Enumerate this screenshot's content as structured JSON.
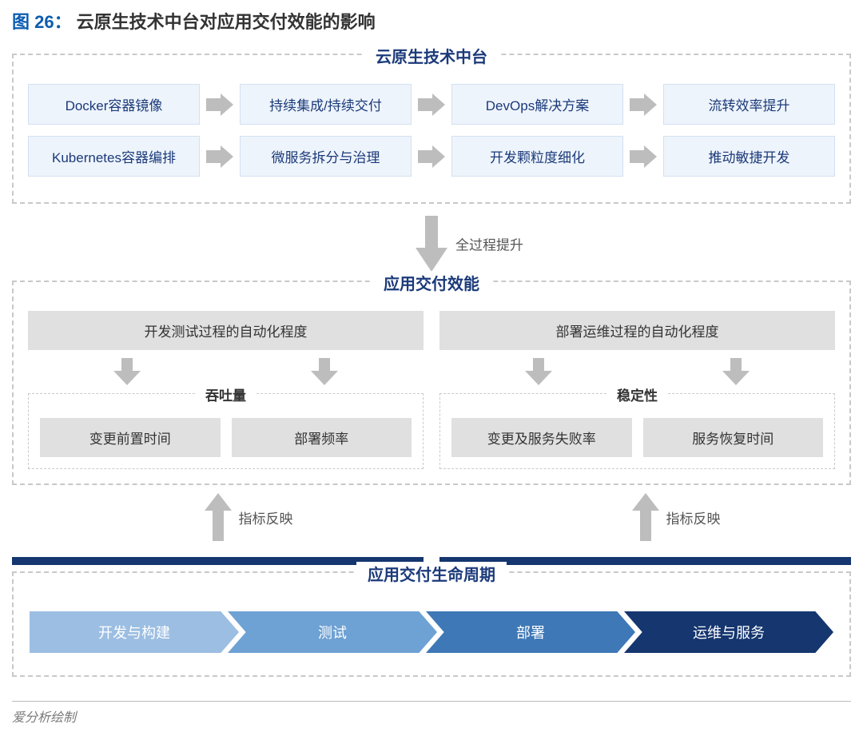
{
  "colors": {
    "title_num": "#0b5cb0",
    "panel_title": "#1b3a7a",
    "dash_border": "#c9c9c9",
    "blue_box_bg": "#eef4fb",
    "blue_box_border": "#d3e1f0",
    "blue_box_text": "#1b3a7a",
    "arrow_fill": "#bdbdbd",
    "gray_bar_bg": "#e0e0e0",
    "navy_bar": "#15366f",
    "chevron_colors": [
      "#9cbee2",
      "#6ea1d4",
      "#3e78b6",
      "#15366f"
    ],
    "credit_text": "#7a7a7a"
  },
  "figure": {
    "label": "图 26：",
    "title": "云原生技术中台对应用交付效能的影响"
  },
  "top_panel": {
    "title": "云原生技术中台",
    "row1": [
      "Docker容器镜像",
      "持续集成/持续交付",
      "DevOps解决方案",
      "流转效率提升"
    ],
    "row2": [
      "Kubernetes容器编排",
      "微服务拆分与治理",
      "开发颗粒度细化",
      "推动敏捷开发"
    ]
  },
  "big_arrow_label": "全过程提升",
  "mid_panel": {
    "title": "应用交付效能",
    "left": {
      "header": "开发测试过程的自动化程度",
      "sub_title": "吞吐量",
      "items": [
        "变更前置时间",
        "部署频率"
      ]
    },
    "right": {
      "header": "部署运维过程的自动化程度",
      "sub_title": "稳定性",
      "items": [
        "变更及服务失败率",
        "服务恢复时间"
      ]
    }
  },
  "reflect_label": "指标反映",
  "lifecycle_panel": {
    "title": "应用交付生命周期",
    "stages": [
      "开发与构建",
      "测试",
      "部署",
      "运维与服务"
    ]
  },
  "credit": "爱分析绘制"
}
